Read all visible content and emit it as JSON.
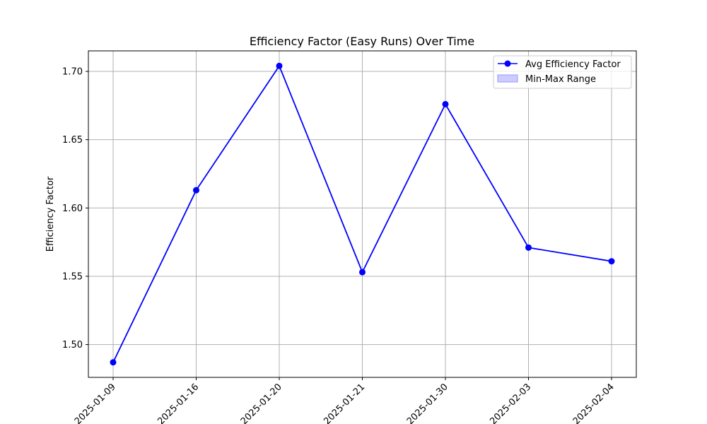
{
  "chart_data": {
    "type": "line",
    "title": "Efficiency Factor (Easy Runs) Over Time",
    "xlabel": "",
    "ylabel": "Efficiency Factor",
    "categories": [
      "2025-01-09",
      "2025-01-16",
      "2025-01-20",
      "2025-01-21",
      "2025-01-30",
      "2025-02-03",
      "2025-02-04"
    ],
    "series": [
      {
        "name": "Avg Efficiency Factor",
        "color": "#0000ff",
        "marker": "circle",
        "values": [
          1.487,
          1.613,
          1.704,
          1.553,
          1.676,
          1.571,
          1.561
        ]
      }
    ],
    "range_series": {
      "name": "Min-Max Range",
      "color": "#ccccff"
    },
    "yticks": [
      "1.50",
      "1.55",
      "1.60",
      "1.65",
      "1.70"
    ],
    "ylim": [
      1.476,
      1.715
    ],
    "grid": true,
    "legend_position": "top-right"
  }
}
